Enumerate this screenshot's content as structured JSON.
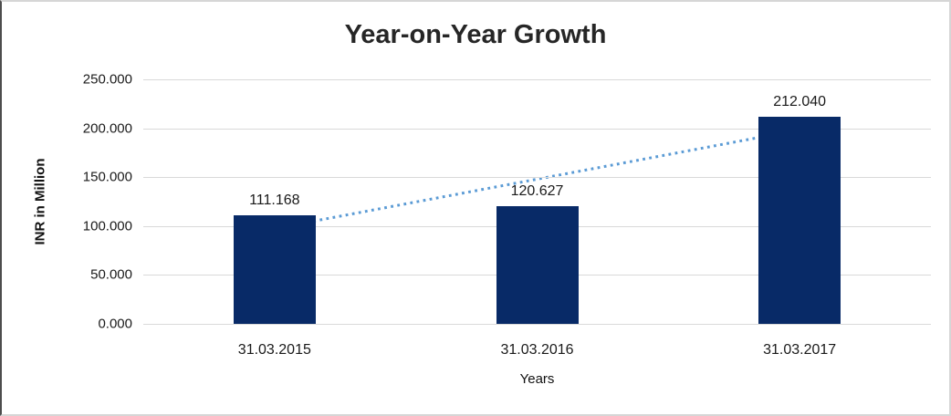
{
  "chart_data": {
    "type": "bar",
    "title": "Year-on-Year Growth",
    "xlabel": "Years",
    "ylabel": "INR in Million",
    "categories": [
      "31.03.2015",
      "31.03.2016",
      "31.03.2017"
    ],
    "values": [
      111.168,
      120.627,
      212.04
    ],
    "value_labels": [
      "111.168",
      "120.627",
      "212.040"
    ],
    "ylim": [
      0,
      250
    ],
    "yticks": [
      {
        "value": 0,
        "label": "0.000"
      },
      {
        "value": 50,
        "label": "50.000"
      },
      {
        "value": 100,
        "label": "100.000"
      },
      {
        "value": 150,
        "label": "150.000"
      },
      {
        "value": 200,
        "label": "200.000"
      },
      {
        "value": 250,
        "label": "250.000"
      }
    ],
    "grid": true,
    "legend": "none",
    "bar_color": "#082a67",
    "gridline_color": "#d9d9d9",
    "trendline": {
      "type": "linear",
      "style": "dotted",
      "color": "#5b9bd5"
    }
  }
}
